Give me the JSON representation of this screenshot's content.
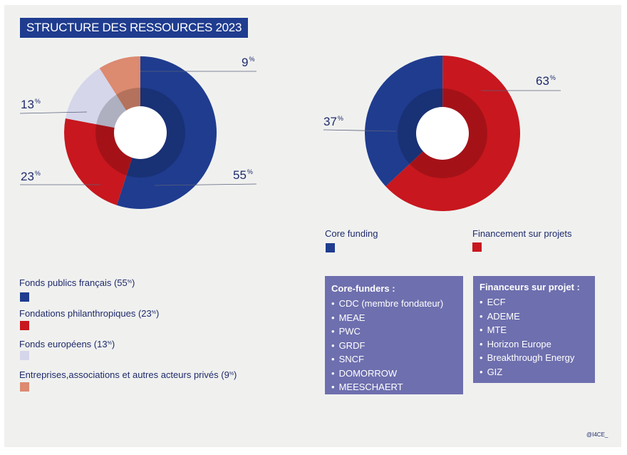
{
  "title": "STRUCTURE DES RESSOURCES 2023",
  "credit": "@I4CE_",
  "pct_unit": "%",
  "colors": {
    "blue": "#1f3c8f",
    "red": "#c8171e",
    "lilac": "#d5d6ea",
    "salmon": "#dc8a70",
    "box": "#6e6fae",
    "text": "#1f2a6b"
  },
  "chart_data": [
    {
      "type": "pie",
      "variant": "donut",
      "slices": [
        {
          "label": "Fonds publics français",
          "value": 55,
          "color": "#1f3c8f"
        },
        {
          "label": "Fondations philanthropiques",
          "value": 23,
          "color": "#c8171e"
        },
        {
          "label": "Fonds européens",
          "value": 13,
          "color": "#d5d6ea"
        },
        {
          "label": "Entreprises,associations et autres acteurs privés",
          "value": 9,
          "color": "#dc8a70"
        }
      ],
      "data_labels": [
        "55",
        "23",
        "13",
        "9"
      ],
      "legend_labels": [
        "Fonds publics français (55",
        "Fondations philanthropiques (23",
        "Fonds européens (13",
        "Entreprises,associations et autres acteurs privés (9"
      ],
      "legend_position": "bottom-left"
    },
    {
      "type": "pie",
      "variant": "donut",
      "slices": [
        {
          "label": "Core funding",
          "value": 37,
          "color": "#1f3c8f"
        },
        {
          "label": "Financement sur projets",
          "value": 63,
          "color": "#c8171e"
        }
      ],
      "data_labels": [
        "37",
        "63"
      ],
      "legend_labels": [
        "Core funding",
        "Financement sur projets"
      ],
      "legend_position": "bottom"
    }
  ],
  "core_funders": {
    "heading": "Core-funders :",
    "items": [
      "CDC (membre fondateur)",
      "MEAE",
      "PWC",
      "GRDF",
      "SNCF",
      "DOMORROW",
      "MEESCHAERT"
    ]
  },
  "project_funders": {
    "heading": "Financeurs sur projet :",
    "items": [
      "ECF",
      "ADEME",
      "MTE",
      "Horizon Europe",
      "Breakthrough Energy",
      "GIZ"
    ]
  }
}
